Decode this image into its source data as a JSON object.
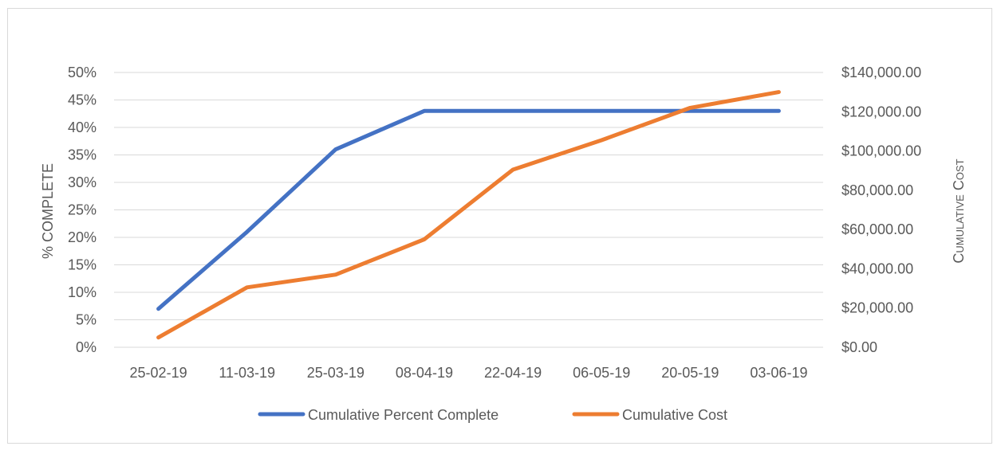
{
  "chart_data": {
    "type": "line",
    "categories": [
      "25-02-19",
      "11-03-19",
      "25-03-19",
      "08-04-19",
      "22-04-19",
      "06-05-19",
      "20-05-19",
      "03-06-19"
    ],
    "series": [
      {
        "name": "Cumulative Percent Complete",
        "axis": "left",
        "color": "#4472C4",
        "values": [
          0.07,
          0.21,
          0.36,
          0.43,
          0.43,
          0.43,
          0.43,
          0.43
        ]
      },
      {
        "name": "Cumulative Cost",
        "axis": "right",
        "color": "#ED7D31",
        "values": [
          5000,
          30500,
          37000,
          55000,
          90500,
          105500,
          122000,
          130000
        ]
      }
    ],
    "ylabel_left": "% COMPLETE",
    "ylabel_right": "Cumulative Cost",
    "ylim_left": [
      0,
      0.5
    ],
    "yticks_left": [
      "50%",
      "45%",
      "40%",
      "35%",
      "30%",
      "25%",
      "20%",
      "15%",
      "10%",
      "5%",
      "0%"
    ],
    "ylim_right": [
      0,
      140000
    ],
    "yticks_right": [
      "$140,000.00",
      "$120,000.00",
      "$100,000.00",
      "$80,000.00",
      "$60,000.00",
      "$40,000.00",
      "$20,000.00",
      "$0.00"
    ],
    "grid": true,
    "legend_position": "bottom",
    "gridline_color": "#d9d9d9"
  }
}
